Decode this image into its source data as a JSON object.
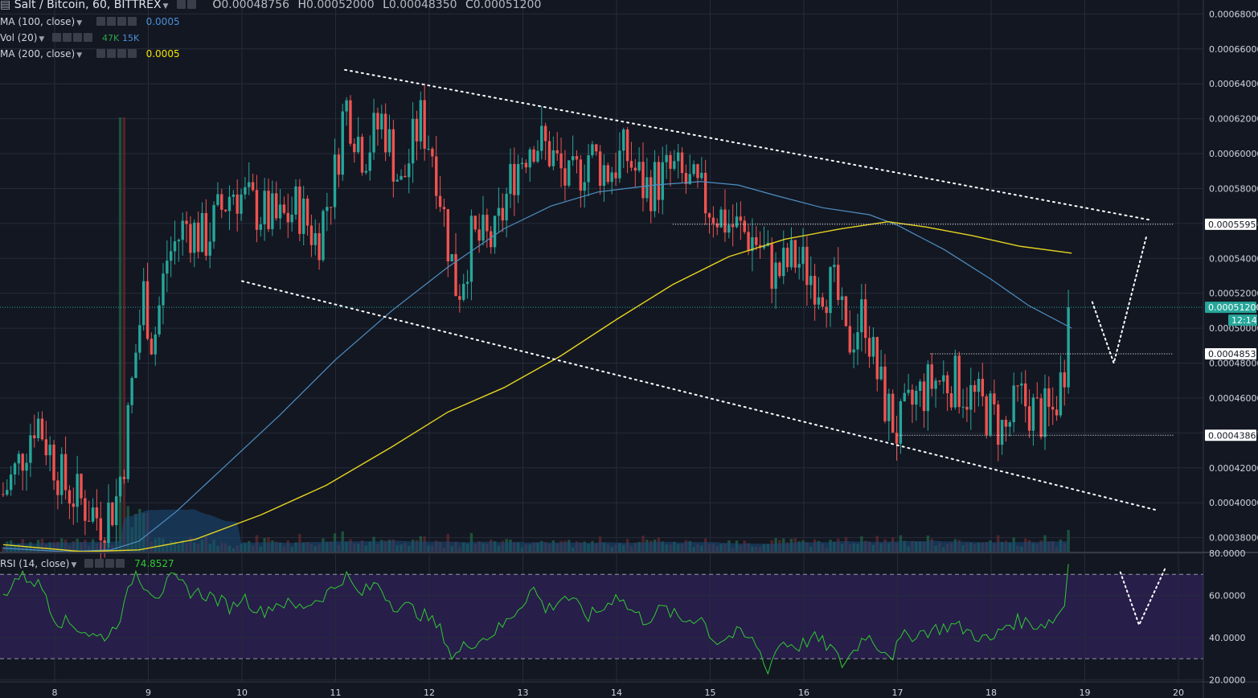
{
  "header": {
    "symbol": "Salt / Bitcoin, 60, BITTREX",
    "ohlc": [
      {
        "k": "O",
        "v": "0.00048756"
      },
      {
        "k": "H",
        "v": "0.00052000"
      },
      {
        "k": "L",
        "v": "0.00048350"
      },
      {
        "k": "C",
        "v": "0.00051200"
      }
    ]
  },
  "indicators": [
    {
      "label": "MA (100, close)",
      "values": [
        "0.0005"
      ],
      "colors": [
        "#4a90d9"
      ]
    },
    {
      "label": "Vol (20)",
      "values": [
        "47K",
        "15K"
      ],
      "colors": [
        "#2fa34a",
        "#4a90d9"
      ]
    },
    {
      "label": "MA (200, close)",
      "values": [
        "0.0005"
      ],
      "colors": [
        "#f2e600"
      ]
    }
  ],
  "rsi_legend": {
    "label": "RSI (14, close)",
    "value": "74.8527",
    "color": "#31c931"
  },
  "colors": {
    "background": "#131722",
    "grid": "#262b38",
    "up": "#26a69a",
    "down": "#ef5350",
    "ma100": "#4d8fc2",
    "ma200": "#e5d420",
    "rsi": "#31c931",
    "rsi_band": "#2a1f4f",
    "price_label": "#26a69a"
  },
  "chart_data": {
    "type": "candlestick",
    "x_ticks": [
      "8",
      "9",
      "10",
      "11",
      "12",
      "13",
      "14",
      "15",
      "16",
      "17",
      "18",
      "19",
      "20"
    ],
    "price_ticks": [
      "0.00038000",
      "0.00040000",
      "0.00042000",
      "0.00044000",
      "0.00046000",
      "0.00048000",
      "0.00050000",
      "0.00052000",
      "0.00054000",
      "0.00056000",
      "0.00058000",
      "0.00060000",
      "0.00062000",
      "0.00064000",
      "0.00066000",
      "0.00068000"
    ],
    "price_range": [
      0.000372,
      0.000688
    ],
    "day_range": [
      7.45,
      20.25
    ],
    "price_markers": [
      {
        "label": "0.00055955",
        "value": 0.00055955,
        "style": "white"
      },
      {
        "label": "0.00051200",
        "value": 0.000512,
        "style": "last"
      },
      {
        "label": "12:14",
        "style": "countdown"
      },
      {
        "label": "0.00048534",
        "value": 0.00048534,
        "style": "white"
      },
      {
        "label": "0.00043865",
        "value": 0.00043865,
        "style": "white"
      }
    ],
    "rsi_ticks": [
      "80.0000",
      "60.0000",
      "40.0000",
      "20.0000"
    ],
    "rsi_range": [
      19,
      80
    ],
    "rsi_bands": [
      70,
      30
    ],
    "close_anchors": [
      [
        7.45,
        0.000405
      ],
      [
        7.6,
        0.00042
      ],
      [
        7.8,
        0.00045
      ],
      [
        7.95,
        0.00043
      ],
      [
        8.1,
        0.00041
      ],
      [
        8.3,
        0.0004
      ],
      [
        8.5,
        0.00039
      ],
      [
        8.65,
        0.0004
      ],
      [
        8.75,
        0.00043
      ],
      [
        8.85,
        0.00048
      ],
      [
        8.95,
        0.00052
      ],
      [
        9.05,
        0.00049
      ],
      [
        9.2,
        0.00054
      ],
      [
        9.4,
        0.00056
      ],
      [
        9.6,
        0.00055
      ],
      [
        9.9,
        0.00058
      ],
      [
        10.1,
        0.00057
      ],
      [
        10.4,
        0.00056
      ],
      [
        10.6,
        0.00057
      ],
      [
        10.8,
        0.00055
      ],
      [
        11.0,
        0.00059
      ],
      [
        11.1,
        0.00063
      ],
      [
        11.3,
        0.0006
      ],
      [
        11.5,
        0.00062
      ],
      [
        11.7,
        0.00058
      ],
      [
        11.9,
        0.00062
      ],
      [
        12.05,
        0.0006
      ],
      [
        12.2,
        0.00055
      ],
      [
        12.3,
        0.00052
      ],
      [
        12.45,
        0.00055
      ],
      [
        12.7,
        0.00055
      ],
      [
        12.9,
        0.00059
      ],
      [
        13.1,
        0.00061
      ],
      [
        13.3,
        0.0006
      ],
      [
        13.5,
        0.00058
      ],
      [
        13.7,
        0.0006
      ],
      [
        13.9,
        0.00059
      ],
      [
        14.1,
        0.0006
      ],
      [
        14.3,
        0.00058
      ],
      [
        14.6,
        0.00059
      ],
      [
        14.8,
        0.00058
      ],
      [
        15.0,
        0.00057
      ],
      [
        15.2,
        0.00056
      ],
      [
        15.5,
        0.00055
      ],
      [
        15.7,
        0.00053
      ],
      [
        15.9,
        0.00054
      ],
      [
        16.1,
        0.00053
      ],
      [
        16.35,
        0.00052
      ],
      [
        16.45,
        0.00049
      ],
      [
        16.55,
        0.0005
      ],
      [
        16.65,
        0.00051
      ],
      [
        16.75,
        0.00048
      ],
      [
        16.85,
        0.00046
      ],
      [
        17.0,
        0.00044
      ],
      [
        17.2,
        0.00046
      ],
      [
        17.4,
        0.00047
      ],
      [
        17.6,
        0.00047
      ],
      [
        17.8,
        0.00046
      ],
      [
        18.0,
        0.00045
      ],
      [
        18.15,
        0.00044
      ],
      [
        18.3,
        0.00046
      ],
      [
        18.5,
        0.00045
      ],
      [
        18.65,
        0.00045
      ],
      [
        18.75,
        0.00047
      ],
      [
        18.8,
        0.000485
      ],
      [
        18.86,
        0.000512
      ]
    ],
    "ma100_points": [
      [
        7.45,
        0.000374
      ],
      [
        8.1,
        0.000372
      ],
      [
        8.6,
        0.000373
      ],
      [
        8.9,
        0.000378
      ],
      [
        9.3,
        0.000395
      ],
      [
        9.8,
        0.00042
      ],
      [
        10.4,
        0.00045
      ],
      [
        11.0,
        0.000482
      ],
      [
        11.6,
        0.00051
      ],
      [
        12.2,
        0.000535
      ],
      [
        12.8,
        0.000557
      ],
      [
        13.3,
        0.00057
      ],
      [
        13.8,
        0.000578
      ],
      [
        14.4,
        0.000582
      ],
      [
        14.9,
        0.000584
      ],
      [
        15.3,
        0.000582
      ],
      [
        15.7,
        0.000576
      ],
      [
        16.2,
        0.000569
      ],
      [
        16.7,
        0.000565
      ],
      [
        17.0,
        0.000559
      ],
      [
        17.5,
        0.000545
      ],
      [
        18.0,
        0.000528
      ],
      [
        18.4,
        0.000513
      ],
      [
        18.86,
        0.0005
      ]
    ],
    "ma200_points": [
      [
        7.45,
        0.000376
      ],
      [
        8.3,
        0.000372
      ],
      [
        8.9,
        0.000373
      ],
      [
        9.5,
        0.000379
      ],
      [
        10.2,
        0.000393
      ],
      [
        10.9,
        0.00041
      ],
      [
        11.6,
        0.000432
      ],
      [
        12.2,
        0.000452
      ],
      [
        12.8,
        0.000466
      ],
      [
        13.4,
        0.000484
      ],
      [
        14.0,
        0.000505
      ],
      [
        14.6,
        0.000525
      ],
      [
        15.2,
        0.000541
      ],
      [
        15.8,
        0.000551
      ],
      [
        16.4,
        0.000557
      ],
      [
        16.9,
        0.000561
      ],
      [
        17.3,
        0.000558
      ],
      [
        17.8,
        0.000553
      ],
      [
        18.3,
        0.000547
      ],
      [
        18.86,
        0.000543
      ]
    ],
    "rsi_anchors": [
      [
        7.45,
        60
      ],
      [
        7.6,
        69
      ],
      [
        7.75,
        68
      ],
      [
        7.9,
        62
      ],
      [
        8.0,
        49
      ],
      [
        8.2,
        46
      ],
      [
        8.45,
        40
      ],
      [
        8.6,
        42
      ],
      [
        8.75,
        55
      ],
      [
        8.85,
        72
      ],
      [
        8.95,
        66
      ],
      [
        9.1,
        60
      ],
      [
        9.25,
        68
      ],
      [
        9.45,
        62
      ],
      [
        9.65,
        60
      ],
      [
        9.9,
        54
      ],
      [
        10.0,
        60
      ],
      [
        10.2,
        52
      ],
      [
        10.4,
        57
      ],
      [
        10.6,
        54
      ],
      [
        10.8,
        58
      ],
      [
        11.0,
        64
      ],
      [
        11.1,
        70
      ],
      [
        11.25,
        60
      ],
      [
        11.45,
        66
      ],
      [
        11.6,
        56
      ],
      [
        11.8,
        54
      ],
      [
        12.0,
        49
      ],
      [
        12.15,
        42
      ],
      [
        12.25,
        30
      ],
      [
        12.4,
        37
      ],
      [
        12.6,
        40
      ],
      [
        12.8,
        46
      ],
      [
        13.0,
        57
      ],
      [
        13.1,
        64
      ],
      [
        13.25,
        53
      ],
      [
        13.45,
        60
      ],
      [
        13.7,
        50
      ],
      [
        13.9,
        55
      ],
      [
        14.0,
        62
      ],
      [
        14.1,
        55
      ],
      [
        14.3,
        48
      ],
      [
        14.5,
        54
      ],
      [
        14.7,
        48
      ],
      [
        14.9,
        50
      ],
      [
        15.05,
        38
      ],
      [
        15.3,
        42
      ],
      [
        15.5,
        37
      ],
      [
        15.6,
        24
      ],
      [
        15.75,
        38
      ],
      [
        15.95,
        36
      ],
      [
        16.1,
        40
      ],
      [
        16.3,
        35
      ],
      [
        16.4,
        27
      ],
      [
        16.5,
        32
      ],
      [
        16.55,
        34
      ],
      [
        16.65,
        42
      ],
      [
        16.8,
        36
      ],
      [
        16.95,
        32
      ],
      [
        17.05,
        40
      ],
      [
        17.2,
        42
      ],
      [
        17.4,
        44
      ],
      [
        17.6,
        46
      ],
      [
        17.8,
        42
      ],
      [
        18.0,
        38
      ],
      [
        18.15,
        46
      ],
      [
        18.3,
        48
      ],
      [
        18.5,
        46
      ],
      [
        18.65,
        48
      ],
      [
        18.75,
        53
      ],
      [
        18.82,
        60
      ],
      [
        18.86,
        74.85
      ]
    ],
    "volume_spike_day": 8.72,
    "drawings": [
      {
        "type": "dotted-line",
        "from": [
          11.1,
          0.000648
        ],
        "to": [
          19.7,
          0.000562
        ]
      },
      {
        "type": "dotted-line",
        "from": [
          10.0,
          0.000527
        ],
        "to": [
          19.75,
          0.000396
        ]
      },
      {
        "type": "dotted-segment",
        "from": [
          14.6,
          0.00055955
        ],
        "to": [
          19.95,
          0.00055955
        ]
      },
      {
        "type": "dotted-segment",
        "from": [
          17.35,
          0.00048534
        ],
        "to": [
          19.95,
          0.00048534
        ]
      },
      {
        "type": "dotted-segment",
        "from": [
          17.0,
          0.00043865
        ],
        "to": [
          19.95,
          0.00043865
        ]
      },
      {
        "type": "dotted-path",
        "points": [
          [
            19.08,
            0.000515
          ],
          [
            19.31,
            0.00048
          ],
          [
            19.66,
            0.000553
          ]
        ]
      },
      {
        "type": "rsi-dotted-path",
        "points": [
          [
            19.38,
            71
          ],
          [
            19.58,
            46
          ],
          [
            19.86,
            73
          ]
        ]
      }
    ]
  }
}
